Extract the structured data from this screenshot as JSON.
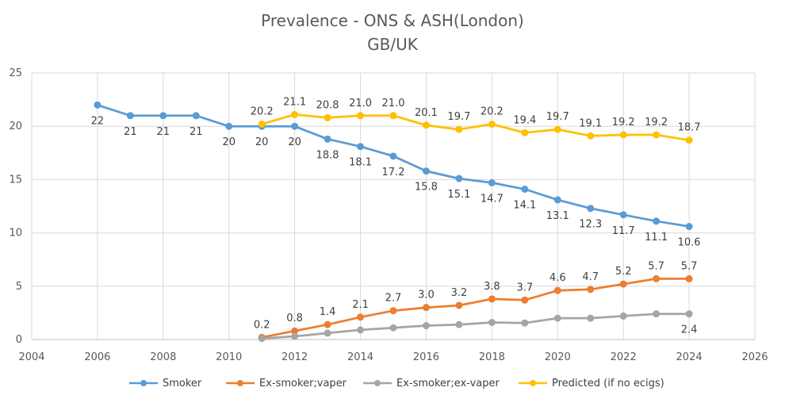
{
  "chart_data": {
    "type": "line",
    "title": "Prevalence - ONS & ASH(London)",
    "subtitle": "GB/UK",
    "xlabel": "",
    "ylabel": "",
    "xlim": [
      2004,
      2026
    ],
    "ylim": [
      0,
      25
    ],
    "x_ticks": [
      2004,
      2006,
      2008,
      2010,
      2012,
      2014,
      2016,
      2018,
      2020,
      2022,
      2024,
      2026
    ],
    "y_ticks": [
      0,
      5,
      10,
      15,
      20,
      25
    ],
    "grid": true,
    "legend_position": "bottom",
    "series": [
      {
        "name": "Smoker",
        "color": "#5B9BD5",
        "label_position": "below",
        "points": [
          [
            2006,
            22
          ],
          [
            2007,
            21
          ],
          [
            2008,
            21
          ],
          [
            2009,
            21
          ],
          [
            2010,
            20
          ],
          [
            2011,
            20
          ],
          [
            2012,
            20
          ],
          [
            2013,
            18.8
          ],
          [
            2014,
            18.1
          ],
          [
            2015,
            17.2
          ],
          [
            2016,
            15.8
          ],
          [
            2017,
            15.1
          ],
          [
            2018,
            14.7
          ],
          [
            2019,
            14.1
          ],
          [
            2020,
            13.1
          ],
          [
            2021,
            12.3
          ],
          [
            2022,
            11.7
          ],
          [
            2023,
            11.1
          ],
          [
            2024,
            10.6
          ]
        ],
        "labels": [
          "22",
          "21",
          "21",
          "21",
          "20",
          "20",
          "20",
          "18.8",
          "18.1",
          "17.2",
          "15.8",
          "15.1",
          "14.7",
          "14.1",
          "13.1",
          "12.3",
          "11.7",
          "11.1",
          "10.6"
        ]
      },
      {
        "name": "Ex-smoker;vaper",
        "color": "#ED7D31",
        "label_position": "above",
        "points": [
          [
            2011,
            0.2
          ],
          [
            2012,
            0.8
          ],
          [
            2013,
            1.4
          ],
          [
            2014,
            2.1
          ],
          [
            2015,
            2.7
          ],
          [
            2016,
            3.0
          ],
          [
            2017,
            3.2
          ],
          [
            2018,
            3.8
          ],
          [
            2019,
            3.7
          ],
          [
            2020,
            4.6
          ],
          [
            2021,
            4.7
          ],
          [
            2022,
            5.2
          ],
          [
            2023,
            5.7
          ],
          [
            2024,
            5.7
          ]
        ],
        "labels": [
          "0.2",
          "0.8",
          "1.4",
          "2.1",
          "2.7",
          "3.0",
          "3.2",
          "3.8",
          "3.7",
          "4.6",
          "4.7",
          "5.2",
          "5.7",
          "5.7"
        ]
      },
      {
        "name": "Ex-smoker;ex-vaper",
        "color": "#A5A5A5",
        "label_position": "below",
        "points": [
          [
            2011,
            0.1
          ],
          [
            2012,
            0.3
          ],
          [
            2013,
            0.6
          ],
          [
            2014,
            0.9
          ],
          [
            2015,
            1.1
          ],
          [
            2016,
            1.3
          ],
          [
            2017,
            1.4
          ],
          [
            2018,
            1.6
          ],
          [
            2019,
            1.55
          ],
          [
            2020,
            2.0
          ],
          [
            2021,
            2.0
          ],
          [
            2022,
            2.2
          ],
          [
            2023,
            2.4
          ],
          [
            2024,
            2.4
          ]
        ],
        "labels": [
          null,
          null,
          null,
          null,
          null,
          null,
          null,
          null,
          null,
          null,
          null,
          null,
          null,
          "2.4"
        ]
      },
      {
        "name": "Predicted (if no ecigs)",
        "color": "#FFC000",
        "label_position": "above",
        "points": [
          [
            2011,
            20.2
          ],
          [
            2012,
            21.1
          ],
          [
            2013,
            20.8
          ],
          [
            2014,
            21.0
          ],
          [
            2015,
            21.0
          ],
          [
            2016,
            20.1
          ],
          [
            2017,
            19.7
          ],
          [
            2018,
            20.2
          ],
          [
            2019,
            19.4
          ],
          [
            2020,
            19.7
          ],
          [
            2021,
            19.1
          ],
          [
            2022,
            19.2
          ],
          [
            2023,
            19.2
          ],
          [
            2024,
            18.7
          ]
        ],
        "labels": [
          "20.2",
          "21.1",
          "20.8",
          "21.0",
          "21.0",
          "20.1",
          "19.7",
          "20.2",
          "19.4",
          "19.7",
          "19.1",
          "19.2",
          "19.2",
          "18.7"
        ]
      }
    ]
  }
}
